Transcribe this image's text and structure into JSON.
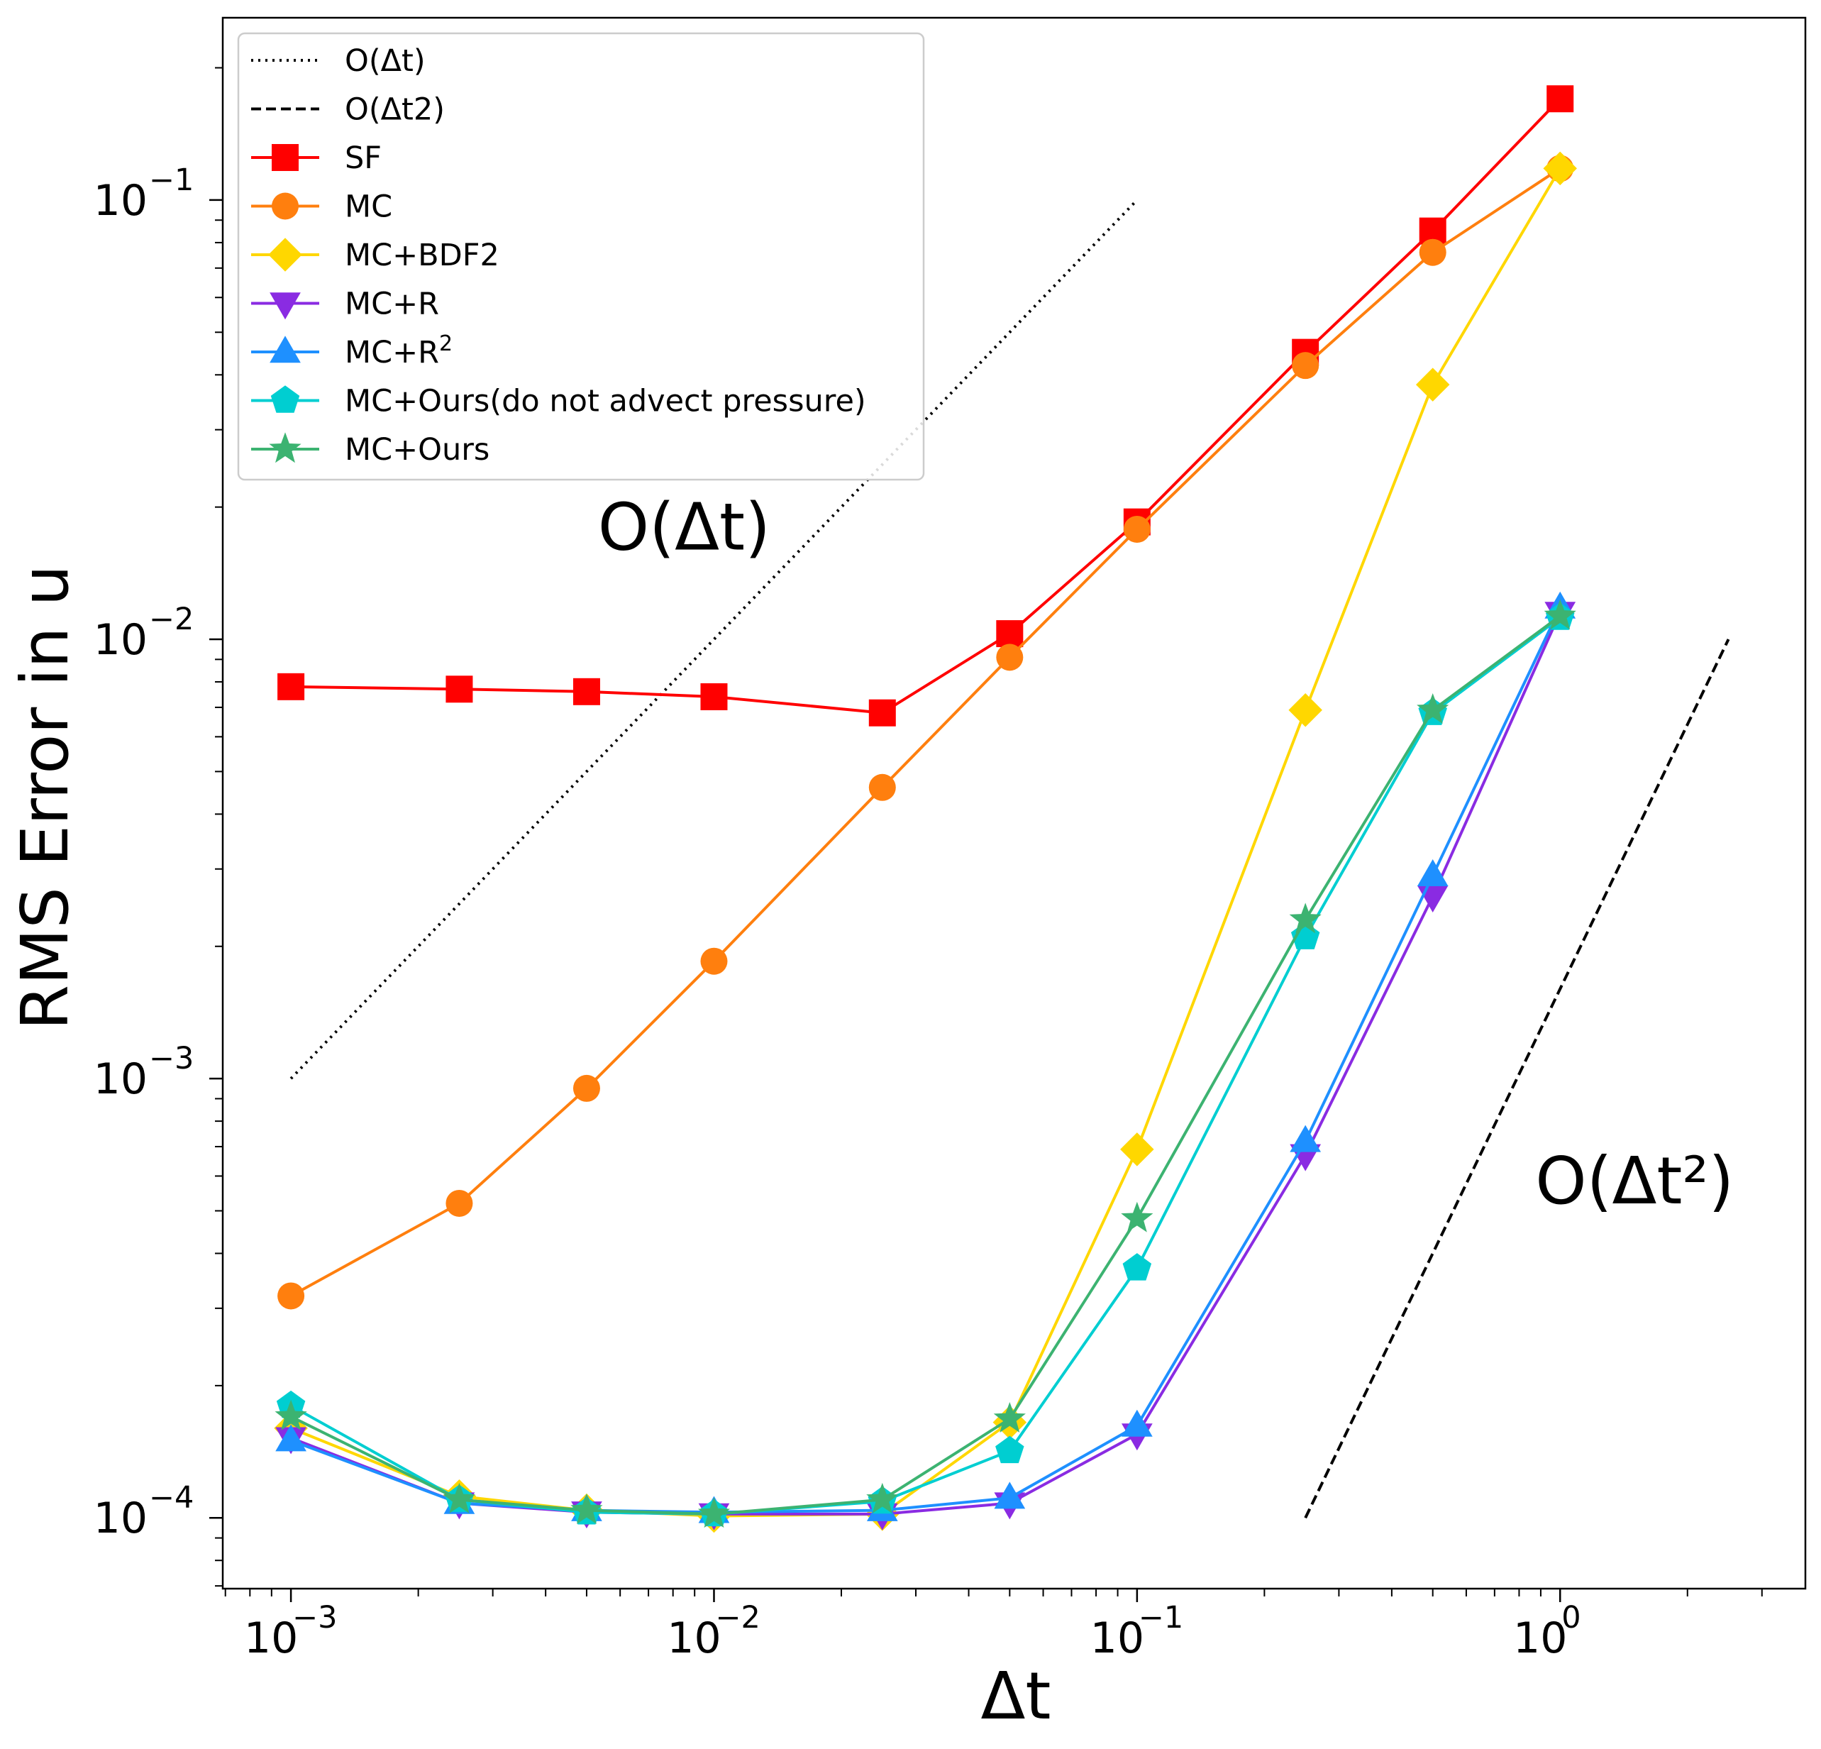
{
  "chart_data": {
    "type": "line",
    "xlabel": "Δt",
    "ylabel": "RMS Error in u",
    "xscale": "log",
    "yscale": "log",
    "xlim": [
      0.00069,
      3.8
    ],
    "ylim": [
      6.9e-05,
      0.26
    ],
    "grid": false,
    "legend_position": "top-left",
    "x_ticks": [
      {
        "value": 0.001,
        "base": "10",
        "exp": "−3"
      },
      {
        "value": 0.01,
        "base": "10",
        "exp": "−2"
      },
      {
        "value": 0.1,
        "base": "10",
        "exp": "−1"
      },
      {
        "value": 1,
        "base": "10",
        "exp": "0"
      }
    ],
    "y_ticks": [
      {
        "value": 0.0001,
        "base": "10",
        "exp": "−4"
      },
      {
        "value": 0.001,
        "base": "10",
        "exp": "−3"
      },
      {
        "value": 0.01,
        "base": "10",
        "exp": "−2"
      },
      {
        "value": 0.1,
        "base": "10",
        "exp": "−1"
      }
    ],
    "annotations": [
      {
        "text": "O(Δt)",
        "x": 0.0085,
        "y": 0.016
      },
      {
        "text": "O(Δt²)",
        "x": 1.5,
        "y": 0.00052
      }
    ],
    "reference_lines": [
      {
        "name": "O(Δt)",
        "style": "dotted",
        "x": [
          0.001,
          0.1
        ],
        "y": [
          0.001,
          0.1
        ]
      },
      {
        "name": "O(Δt2)",
        "style": "dashed",
        "x": [
          0.25,
          2.5
        ],
        "y": [
          0.0001,
          0.01
        ]
      }
    ],
    "x": [
      0.001,
      0.0025,
      0.005,
      0.01,
      0.025,
      0.05,
      0.1,
      0.25,
      0.5,
      1.0
    ],
    "series": [
      {
        "name": "SF",
        "color": "#ff0000",
        "marker": "square",
        "values": [
          0.0078,
          0.0077,
          0.0076,
          0.0074,
          0.0068,
          0.0103,
          0.0185,
          0.045,
          0.085,
          0.17
        ]
      },
      {
        "name": "MC",
        "color": "#ff7f0e",
        "marker": "circle",
        "values": [
          0.00032,
          0.00052,
          0.00095,
          0.00185,
          0.0046,
          0.0091,
          0.0178,
          0.042,
          0.076,
          0.118
        ]
      },
      {
        "name": "MC+BDF2",
        "color": "#ffd700",
        "marker": "diamond",
        "values": [
          0.00016,
          0.000112,
          0.000104,
          0.000101,
          0.000102,
          0.000165,
          0.00069,
          0.0069,
          0.038,
          0.118
        ]
      },
      {
        "name": "MC+R",
        "color": "#8a2be2",
        "marker": "triangle-down",
        "values": [
          0.000152,
          0.000108,
          0.000103,
          0.000102,
          0.000102,
          0.000108,
          0.000155,
          0.00067,
          0.0026,
          0.0115
        ]
      },
      {
        "name": "MC+R",
        "name_sup": "2",
        "color": "#1e90ff",
        "marker": "triangle-up",
        "values": [
          0.00015,
          0.000108,
          0.000104,
          0.000103,
          0.000104,
          0.000111,
          0.000162,
          0.00072,
          0.0029,
          0.0118
        ]
      },
      {
        "name": "MC+Ours(do not advect pressure)",
        "color": "#00ced1",
        "marker": "pentagon",
        "values": [
          0.00018,
          0.00011,
          0.000103,
          0.000102,
          0.000109,
          0.000142,
          0.00037,
          0.0021,
          0.0068,
          0.0112
        ]
      },
      {
        "name": "MC+Ours",
        "color": "#3cb371",
        "marker": "star",
        "values": [
          0.00017,
          0.00011,
          0.000104,
          0.000102,
          0.00011,
          0.000168,
          0.00048,
          0.0023,
          0.0069,
          0.0113
        ]
      }
    ]
  }
}
